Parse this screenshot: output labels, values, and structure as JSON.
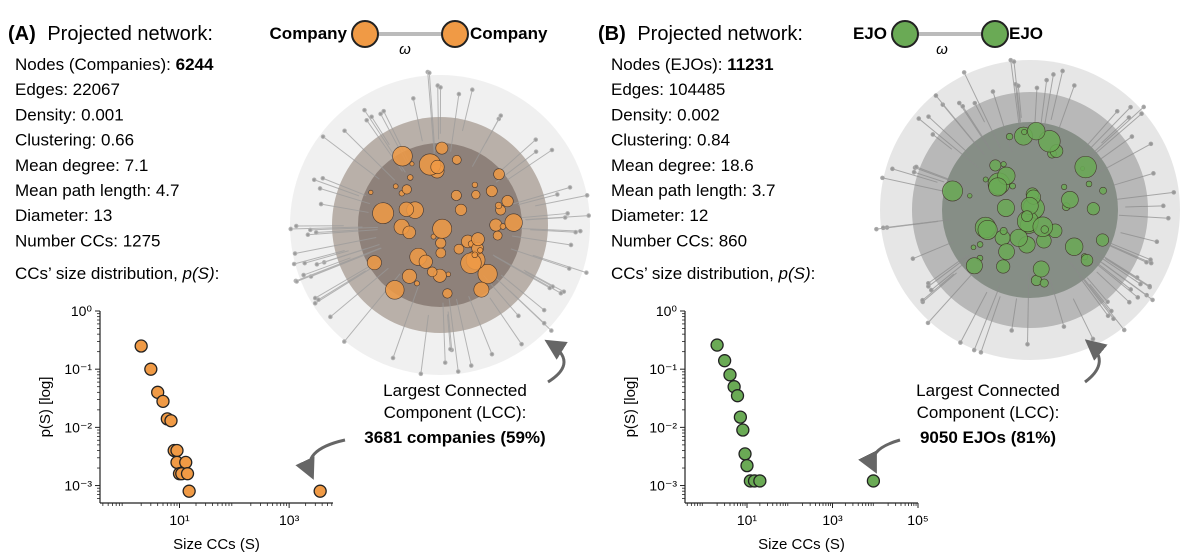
{
  "panels": [
    {
      "id": "A",
      "label": "(A)",
      "header_text": "Projected network:",
      "node_label": "Company",
      "edge_symbol": "ω",
      "node_color": "#f09a45",
      "stats": [
        {
          "label": "Nodes (Companies): ",
          "value": "6244",
          "bold": true
        },
        {
          "label": "Edges: ",
          "value": "22067",
          "bold": false
        },
        {
          "label": "Density: ",
          "value": "0.001",
          "bold": false
        },
        {
          "label": "Clustering: ",
          "value": "0.66",
          "bold": false
        },
        {
          "label": "Mean degree: ",
          "value": "7.1",
          "bold": false
        },
        {
          "label": "Mean path length: ",
          "value": "4.7",
          "bold": false
        },
        {
          "label": "Diameter: ",
          "value": "13",
          "bold": false
        },
        {
          "label": "Number CCs: ",
          "value": "1275",
          "bold": false
        }
      ],
      "dist_title": "CCs’ size distribution, ",
      "dist_title_math": "p(S)",
      "dist_title_end": ":",
      "lcc_line1": "Largest Connected",
      "lcc_line2": "Component (LCC):",
      "lcc_line3": "3681 companies (59%)"
    },
    {
      "id": "B",
      "label": "(B)",
      "header_text": "Projected network:",
      "node_label": "EJO",
      "edge_symbol": "ω",
      "node_color": "#6aaa55",
      "stats": [
        {
          "label": "Nodes (EJOs): ",
          "value": "11231",
          "bold": true
        },
        {
          "label": "Edges: ",
          "value": "104485",
          "bold": false
        },
        {
          "label": "Density: ",
          "value": "0.002",
          "bold": false
        },
        {
          "label": "Clustering: ",
          "value": "0.84",
          "bold": false
        },
        {
          "label": "Mean degree: ",
          "value": "18.6",
          "bold": false
        },
        {
          "label": "Mean path length: ",
          "value": "3.7",
          "bold": false
        },
        {
          "label": "Diameter: ",
          "value": "12",
          "bold": false
        },
        {
          "label": "Number CCs: ",
          "value": "860",
          "bold": false
        }
      ],
      "dist_title": "CCs’ size distribution, ",
      "dist_title_math": "p(S)",
      "dist_title_end": ":",
      "lcc_line1": "Largest Connected",
      "lcc_line2": "Component (LCC):",
      "lcc_line3": "9050 EJOs (81%)"
    }
  ],
  "chart_data": [
    {
      "type": "scatter",
      "scale": "log-log",
      "xlabel": "Size CCs (S)",
      "ylabel": "p(S) [log]",
      "xlim_log10": [
        -0.45,
        3.8
      ],
      "ylim_log10": [
        -3.3,
        0
      ],
      "xticks": [
        {
          "exp": 1,
          "label": "10¹"
        },
        {
          "exp": 3,
          "label": "10³"
        }
      ],
      "yticks": [
        {
          "exp": 0,
          "label": "10⁰"
        },
        {
          "exp": -1,
          "label": "10⁻¹"
        },
        {
          "exp": -2,
          "label": "10⁻²"
        },
        {
          "exp": -3,
          "label": "10⁻³"
        }
      ],
      "color": "#f09a45",
      "points": [
        {
          "x": 2,
          "y": 0.25
        },
        {
          "x": 3,
          "y": 0.1
        },
        {
          "x": 4,
          "y": 0.04
        },
        {
          "x": 5,
          "y": 0.028
        },
        {
          "x": 6,
          "y": 0.014
        },
        {
          "x": 7,
          "y": 0.013
        },
        {
          "x": 8,
          "y": 0.004
        },
        {
          "x": 9,
          "y": 0.004
        },
        {
          "x": 9,
          "y": 0.0025
        },
        {
          "x": 10,
          "y": 0.0016
        },
        {
          "x": 11,
          "y": 0.0016
        },
        {
          "x": 13,
          "y": 0.0025
        },
        {
          "x": 14,
          "y": 0.0016
        },
        {
          "x": 15,
          "y": 0.0008
        },
        {
          "x": 3681,
          "y": 0.0008
        }
      ]
    },
    {
      "type": "scatter",
      "scale": "log-log",
      "xlabel": "Size CCs (S)",
      "ylabel": "p(S) [log]",
      "xlim_log10": [
        -0.45,
        5
      ],
      "ylim_log10": [
        -3.3,
        0
      ],
      "xticks": [
        {
          "exp": 1,
          "label": "10¹"
        },
        {
          "exp": 3,
          "label": "10³"
        },
        {
          "exp": 5,
          "label": "10⁵"
        }
      ],
      "yticks": [
        {
          "exp": 0,
          "label": "10⁰"
        },
        {
          "exp": -1,
          "label": "10⁻¹"
        },
        {
          "exp": -2,
          "label": "10⁻²"
        },
        {
          "exp": -3,
          "label": "10⁻³"
        }
      ],
      "color": "#6aaa55",
      "points": [
        {
          "x": 2,
          "y": 0.26
        },
        {
          "x": 3,
          "y": 0.14
        },
        {
          "x": 4,
          "y": 0.08
        },
        {
          "x": 5,
          "y": 0.05
        },
        {
          "x": 6,
          "y": 0.035
        },
        {
          "x": 7,
          "y": 0.015
        },
        {
          "x": 8,
          "y": 0.009
        },
        {
          "x": 9,
          "y": 0.0035
        },
        {
          "x": 10,
          "y": 0.0022
        },
        {
          "x": 12,
          "y": 0.0012
        },
        {
          "x": 15,
          "y": 0.0012
        },
        {
          "x": 20,
          "y": 0.0012
        },
        {
          "x": 9050,
          "y": 0.0012
        }
      ]
    }
  ]
}
